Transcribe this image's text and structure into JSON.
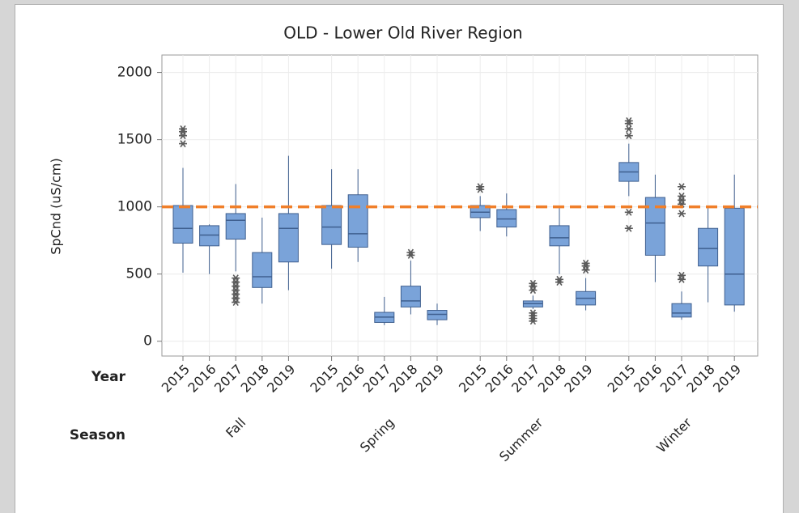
{
  "chart_data": {
    "type": "boxplot",
    "title": "OLD - Lower Old River Region",
    "y_label": "SpCnd (uS/cm)",
    "row_labels": [
      "Year",
      "Season"
    ],
    "ylim": [
      -110,
      2130
    ],
    "yticks": [
      0,
      500,
      1000,
      1500,
      2000
    ],
    "grid": true,
    "box_color": "#7aa3d9",
    "edge_color": "#3f5f8f",
    "outlier_color": "#5a5a5a",
    "reference_line": {
      "value": 1000,
      "color": "#f07f2a"
    },
    "groups": [
      {
        "name": "Fall",
        "categories": [
          "2015",
          "2016",
          "2017",
          "2018",
          "2019"
        ],
        "boxes": [
          {
            "whislo": 510,
            "q1": 730,
            "med": 840,
            "q3": 1010,
            "whishi": 1290,
            "fliers": [
              1470,
              1530,
              1560,
              1580
            ]
          },
          {
            "whislo": 500,
            "q1": 710,
            "med": 790,
            "q3": 860,
            "whishi": 870,
            "fliers": []
          },
          {
            "whislo": 520,
            "q1": 760,
            "med": 900,
            "q3": 950,
            "whishi": 1170,
            "fliers": [
              290,
              320,
              350,
              380,
              410,
              440,
              470
            ]
          },
          {
            "whislo": 280,
            "q1": 400,
            "med": 480,
            "q3": 660,
            "whishi": 920,
            "fliers": []
          },
          {
            "whislo": 380,
            "q1": 590,
            "med": 840,
            "q3": 950,
            "whishi": 1380,
            "fliers": []
          }
        ]
      },
      {
        "name": "Spring",
        "categories": [
          "2015",
          "2016",
          "2017",
          "2018",
          "2019"
        ],
        "boxes": [
          {
            "whislo": 540,
            "q1": 720,
            "med": 850,
            "q3": 1010,
            "whishi": 1280,
            "fliers": []
          },
          {
            "whislo": 590,
            "q1": 700,
            "med": 800,
            "q3": 1090,
            "whishi": 1280,
            "fliers": []
          },
          {
            "whislo": 120,
            "q1": 140,
            "med": 180,
            "q3": 215,
            "whishi": 330,
            "fliers": []
          },
          {
            "whislo": 200,
            "q1": 255,
            "med": 300,
            "q3": 410,
            "whishi": 600,
            "fliers": [
              640,
              660
            ]
          },
          {
            "whislo": 120,
            "q1": 160,
            "med": 200,
            "q3": 230,
            "whishi": 280,
            "fliers": []
          }
        ]
      },
      {
        "name": "Summer",
        "categories": [
          "2015",
          "2016",
          "2017",
          "2018",
          "2019"
        ],
        "boxes": [
          {
            "whislo": 820,
            "q1": 920,
            "med": 960,
            "q3": 1010,
            "whishi": 1080,
            "fliers": [
              1130,
              1150
            ]
          },
          {
            "whislo": 780,
            "q1": 850,
            "med": 910,
            "q3": 980,
            "whishi": 1100,
            "fliers": []
          },
          {
            "whislo": 240,
            "q1": 255,
            "med": 280,
            "q3": 300,
            "whishi": 340,
            "fliers": [
              150,
              170,
              190,
              210,
              380,
              410,
              430
            ]
          },
          {
            "whislo": 500,
            "q1": 710,
            "med": 770,
            "q3": 860,
            "whishi": 1000,
            "fliers": [
              440,
              460
            ]
          },
          {
            "whislo": 230,
            "q1": 270,
            "med": 320,
            "q3": 370,
            "whishi": 470,
            "fliers": [
              530,
              560,
              580
            ]
          }
        ]
      },
      {
        "name": "Winter",
        "categories": [
          "2015",
          "2016",
          "2017",
          "2018",
          "2019"
        ],
        "boxes": [
          {
            "whislo": 1080,
            "q1": 1190,
            "med": 1260,
            "q3": 1330,
            "whishi": 1470,
            "fliers": [
              840,
              960,
              1530,
              1580,
              1620,
              1640
            ]
          },
          {
            "whislo": 440,
            "q1": 640,
            "med": 880,
            "q3": 1070,
            "whishi": 1240,
            "fliers": []
          },
          {
            "whislo": 160,
            "q1": 180,
            "med": 210,
            "q3": 280,
            "whishi": 370,
            "fliers": [
              460,
              490,
              950,
              1020,
              1050,
              1080,
              1150
            ]
          },
          {
            "whislo": 290,
            "q1": 560,
            "med": 690,
            "q3": 840,
            "whishi": 1000,
            "fliers": []
          },
          {
            "whislo": 220,
            "q1": 270,
            "med": 500,
            "q3": 990,
            "whishi": 1240,
            "fliers": []
          }
        ]
      }
    ]
  }
}
